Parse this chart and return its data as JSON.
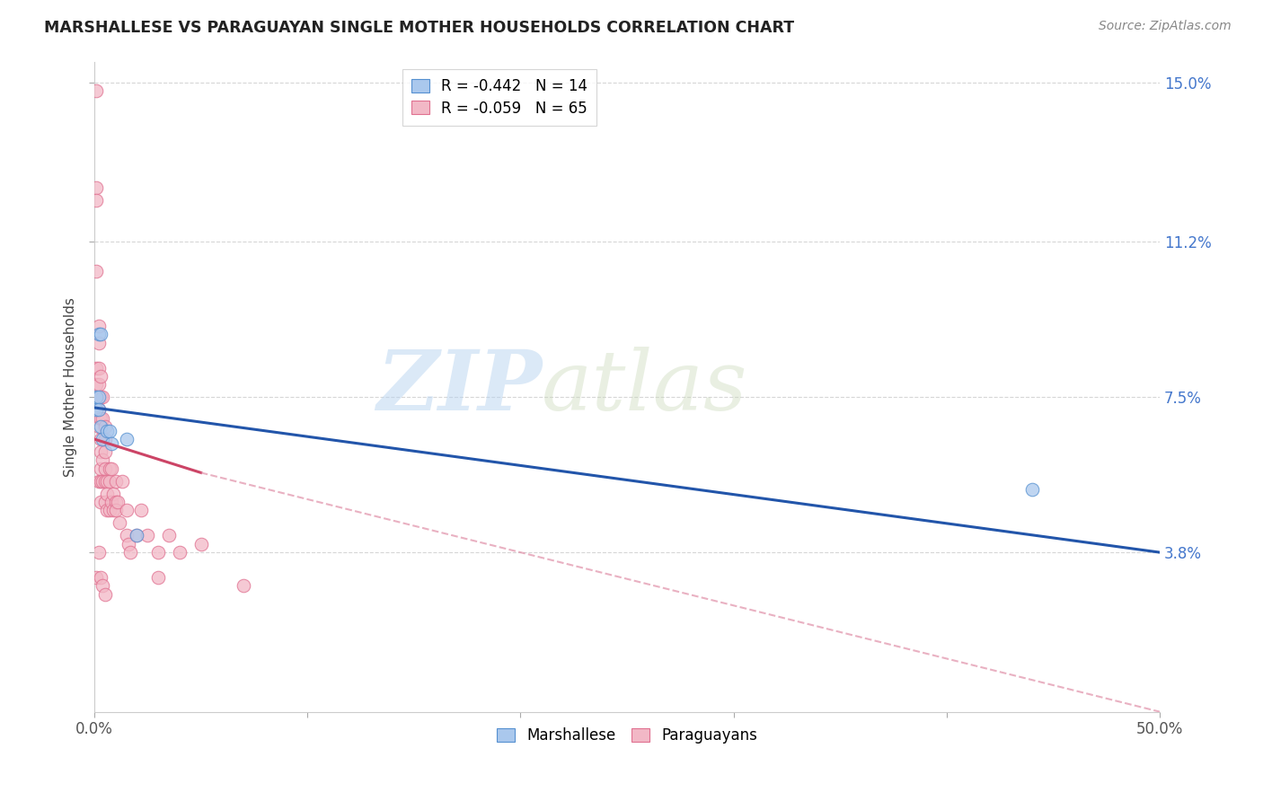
{
  "title": "MARSHALLESE VS PARAGUAYAN SINGLE MOTHER HOUSEHOLDS CORRELATION CHART",
  "source": "Source: ZipAtlas.com",
  "ylabel": "Single Mother Households",
  "xlim": [
    0.0,
    0.5
  ],
  "ylim": [
    0.0,
    0.155
  ],
  "yticks": [
    0.038,
    0.075,
    0.112,
    0.15
  ],
  "yticklabels": [
    "3.8%",
    "7.5%",
    "11.2%",
    "15.0%"
  ],
  "legend_r_marshallese": "R = -0.442",
  "legend_n_marshallese": "N = 14",
  "legend_r_paraguayan": "R = -0.059",
  "legend_n_paraguayan": "N = 65",
  "color_marshallese": "#aac8ed",
  "color_paraguayan": "#f2b8c6",
  "edge_marshallese": "#5590d0",
  "edge_paraguayan": "#e07090",
  "trendline_marshallese_color": "#2255aa",
  "trendline_paraguayan_solid_color": "#cc4466",
  "trendline_paraguayan_dash_color": "#e090a8",
  "watermark_zip": "ZIP",
  "watermark_atlas": "atlas",
  "marshallese_x": [
    0.002,
    0.003,
    0.001,
    0.001,
    0.002,
    0.002,
    0.003,
    0.004,
    0.006,
    0.007,
    0.008,
    0.015,
    0.02,
    0.44
  ],
  "marshallese_y": [
    0.09,
    0.09,
    0.075,
    0.072,
    0.075,
    0.072,
    0.068,
    0.065,
    0.067,
    0.067,
    0.064,
    0.065,
    0.042,
    0.053
  ],
  "paraguayan_x": [
    0.001,
    0.001,
    0.001,
    0.001,
    0.001,
    0.001,
    0.002,
    0.002,
    0.002,
    0.002,
    0.002,
    0.002,
    0.002,
    0.003,
    0.003,
    0.003,
    0.003,
    0.003,
    0.003,
    0.003,
    0.003,
    0.004,
    0.004,
    0.004,
    0.004,
    0.005,
    0.005,
    0.005,
    0.005,
    0.005,
    0.005,
    0.006,
    0.006,
    0.006,
    0.007,
    0.007,
    0.007,
    0.008,
    0.008,
    0.009,
    0.009,
    0.01,
    0.01,
    0.01,
    0.011,
    0.012,
    0.013,
    0.015,
    0.015,
    0.016,
    0.017,
    0.02,
    0.022,
    0.025,
    0.03,
    0.03,
    0.035,
    0.04,
    0.05,
    0.07,
    0.001,
    0.002,
    0.003,
    0.004,
    0.005
  ],
  "paraguayan_y": [
    0.148,
    0.125,
    0.122,
    0.105,
    0.082,
    0.078,
    0.092,
    0.088,
    0.082,
    0.078,
    0.072,
    0.068,
    0.055,
    0.08,
    0.075,
    0.07,
    0.065,
    0.062,
    0.058,
    0.055,
    0.05,
    0.075,
    0.07,
    0.06,
    0.055,
    0.068,
    0.065,
    0.062,
    0.058,
    0.055,
    0.05,
    0.055,
    0.052,
    0.048,
    0.058,
    0.055,
    0.048,
    0.058,
    0.05,
    0.052,
    0.048,
    0.055,
    0.05,
    0.048,
    0.05,
    0.045,
    0.055,
    0.048,
    0.042,
    0.04,
    0.038,
    0.042,
    0.048,
    0.042,
    0.038,
    0.032,
    0.042,
    0.038,
    0.04,
    0.03,
    0.032,
    0.038,
    0.032,
    0.03,
    0.028
  ],
  "trendline_m_x0": 0.0,
  "trendline_m_y0": 0.0725,
  "trendline_m_x1": 0.5,
  "trendline_m_y1": 0.038,
  "trendline_p_solid_x0": 0.0,
  "trendline_p_solid_y0": 0.065,
  "trendline_p_solid_x1": 0.05,
  "trendline_p_solid_y1": 0.057,
  "trendline_p_dash_x0": 0.05,
  "trendline_p_dash_y0": 0.057,
  "trendline_p_dash_x1": 0.5,
  "trendline_p_dash_y1": 0.0
}
